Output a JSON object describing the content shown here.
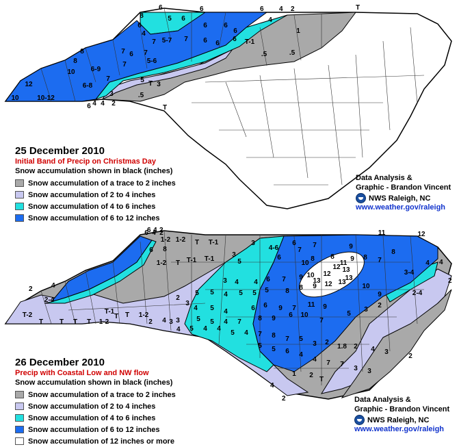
{
  "colors": {
    "trace_to_2": "#a9a9a9",
    "2_to_4": "#c8c8f0",
    "4_to_6": "#22e0e0",
    "6_to_12": "#1c6cf0",
    "12_plus": "#ffffff",
    "outline": "#000000",
    "title_red": "#d00000",
    "link_blue": "#1133cc"
  },
  "credit": {
    "line1": "Data Analysis &",
    "line2": "Graphic - Brandon Vincent",
    "office": "NWS Raleigh, NC",
    "url": "www.weather.gov/raleigh",
    "logo_icon": "noaa-logo-icon"
  },
  "map_top": {
    "title": "25 December 2010",
    "subtitle": "Initial Band of Precip on Christmas Day",
    "legend_note": "Snow accumulation shown in black (inches)",
    "legend": [
      {
        "label": "Snow accumulation of a trace to 2 inches",
        "color": "#a9a9a9"
      },
      {
        "label": "Snow accumulation of 2 to 4 inches",
        "color": "#c8c8f0"
      },
      {
        "label": "Snow accumulation of 4 to 6 inches",
        "color": "#22e0e0"
      },
      {
        "label": "Snow accumulation of 6 to 12 inches",
        "color": "#1c6cf0"
      }
    ],
    "county_values": [
      "8",
      "6",
      "4",
      "5",
      "6",
      "6",
      "6",
      "4",
      "7",
      "5-7",
      "7",
      "6",
      "6",
      "6",
      "6",
      "1",
      "7",
      "8",
      "6",
      "7",
      "T-1",
      ".5",
      ".5",
      "8",
      "6-9",
      "7",
      "5-6",
      "10",
      "5",
      "7",
      "12",
      "6-8",
      "3",
      "T",
      "10",
      "10-12",
      "4",
      "3",
      ".5",
      "6",
      "4",
      "2",
      "T"
    ],
    "contour_edge_labels": [
      "6",
      "6",
      "6",
      "4",
      "2",
      "T"
    ]
  },
  "map_bottom": {
    "title": "26 December 2010",
    "subtitle": "Precip with Coastal Low and NW flow",
    "legend_note": "Snow accumulation shown in black (inches)",
    "legend": [
      {
        "label": "Snow accumulation of a trace to 2 inches",
        "color": "#a9a9a9"
      },
      {
        "label": "Snow accumulation of 2 to 4 inches",
        "color": "#c8c8f0"
      },
      {
        "label": "Snow accumulation of 4 to 6 inches",
        "color": "#22e0e0"
      },
      {
        "label": "Snow accumulation of 6 to 12 inches",
        "color": "#1c6cf0"
      },
      {
        "label": "Snow accumulation of 12 inches or more",
        "color": "#ffffff"
      }
    ],
    "county_values": [
      "6",
      "4",
      "2",
      "1-2",
      "1-2",
      "T",
      "T-1",
      "3",
      "4-6",
      "6",
      "7",
      "9",
      "11",
      "12",
      "6",
      "8",
      "1-2",
      "T",
      "T-1",
      "T-1",
      "3",
      "5",
      "6",
      "7",
      "8",
      "8",
      "9",
      "8",
      "7",
      "8",
      "10",
      "11",
      "12",
      "13",
      "3",
      "4",
      "4",
      "6",
      "7",
      "9",
      "10",
      "13",
      "12",
      "13",
      "5",
      "5",
      "4",
      "5",
      "5",
      "5",
      "8",
      "8",
      "9",
      "12",
      "13",
      "10",
      "9",
      "3-4",
      "4",
      "2",
      "3",
      "4",
      "5",
      "4",
      "6",
      "6",
      "9",
      "7",
      "11",
      "9",
      "2-4",
      "T-2",
      "2-4",
      "T-1",
      "T",
      "T",
      "1-2",
      "4",
      "3",
      "5",
      "5",
      "4",
      "7",
      "8",
      "9",
      "6",
      "10",
      "7",
      "5",
      "3",
      "2",
      "T",
      "T",
      "T",
      "T",
      "1-2",
      "2",
      "3",
      "5",
      "4",
      "4",
      "5",
      "4",
      "7",
      "8",
      "7",
      "5",
      "3",
      "2",
      "1.8",
      "2",
      "4",
      "3",
      "2",
      "5",
      "5",
      "6",
      "4",
      "4",
      "7",
      "7",
      "3",
      "3",
      "1",
      "2",
      "T"
    ],
    "contour_edge_labels": [
      "6",
      "4",
      "2",
      "2",
      "4",
      "4",
      "2",
      "4",
      "4",
      "2"
    ]
  }
}
